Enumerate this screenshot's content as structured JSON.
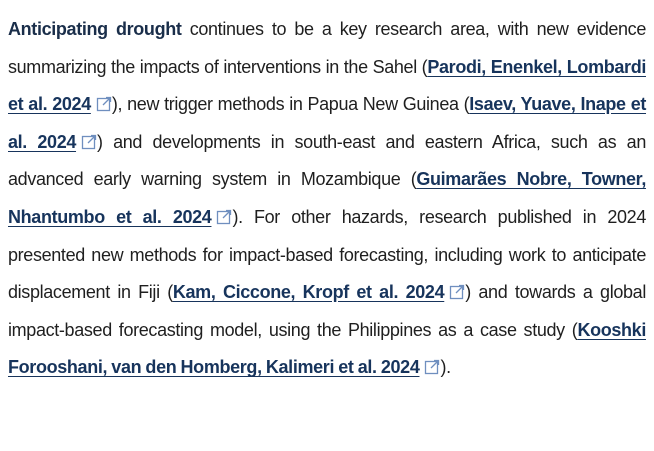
{
  "paragraph": {
    "segments": [
      {
        "kind": "bold",
        "text": "Anticipating drought"
      },
      {
        "kind": "text",
        "text": " continues to be a key research area, with new evidence summarizing the impacts of interventions in the Sahel ("
      },
      {
        "kind": "link",
        "text": "Parodi, Enenkel, Lombardi et al. 2024"
      },
      {
        "kind": "text",
        "text": "), new trigger methods in Papua New Guinea ("
      },
      {
        "kind": "link",
        "text": "Isaev, Yuave, Inape et al. 2024"
      },
      {
        "kind": "text",
        "text": ") and developments in south-east and eastern Africa, such as an advanced early warning system in Mozambique ("
      },
      {
        "kind": "link",
        "text": "Guimarães Nobre, Towner, Nhantumbo et al. 2024"
      },
      {
        "kind": "text",
        "text": "). For other hazards, research published in 2024 presented new methods for impact-based forecasting, including work to anticipate displacement in Fiji ("
      },
      {
        "kind": "link",
        "text": "Kam, Ciccone, Kropf et al. 2024"
      },
      {
        "kind": "text",
        "text": ") and towards a global impact-based forecasting model, using the Philippines as a case study ("
      },
      {
        "kind": "link",
        "text": "Kooshki Forooshani, van den Homberg, Kalimeri et al. 2024"
      },
      {
        "kind": "text",
        "text": ")."
      }
    ]
  }
}
